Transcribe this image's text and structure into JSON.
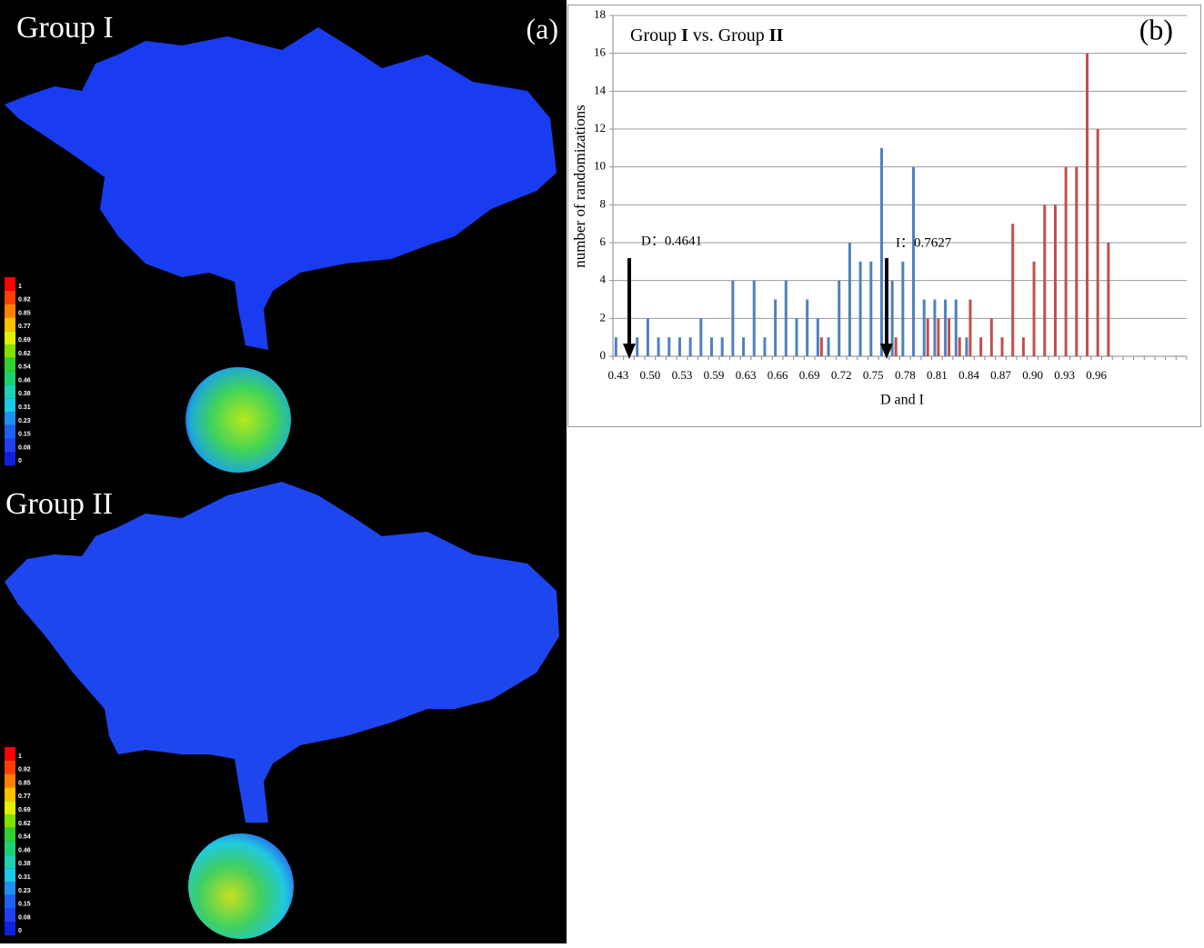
{
  "map_panel": {
    "label": "(a)",
    "maps": [
      {
        "title": "Group I"
      },
      {
        "title": "Group II"
      }
    ],
    "colorbar_ticks": [
      1,
      0.92,
      0.85,
      0.77,
      0.69,
      0.62,
      0.54,
      0.46,
      0.38,
      0.31,
      0.23,
      0.15,
      0.08,
      0
    ]
  },
  "chart_data": {
    "type": "bar",
    "panel_label": "(b)",
    "title_parts": [
      "Group ",
      "I",
      " vs. Group ",
      "II"
    ],
    "x_label": "D and I",
    "y_label": "number of randomizations",
    "categories": [
      "0.43",
      null,
      null,
      "0.50",
      null,
      null,
      "0.53",
      null,
      null,
      "0.59",
      null,
      null,
      "0.63",
      null,
      null,
      "0.66",
      null,
      null,
      "0.69",
      null,
      null,
      "0.72",
      null,
      null,
      "0.75",
      null,
      null,
      "0.78",
      null,
      null,
      "0.81",
      null,
      null,
      "0.84",
      null,
      null,
      "0.87",
      null,
      null,
      "0.90",
      null,
      null,
      "0.93",
      null,
      null,
      "0.96",
      null,
      null,
      null,
      null,
      null,
      null,
      null,
      null
    ],
    "series": [
      {
        "color": "#4f81bd",
        "values": [
          1,
          0,
          1,
          2,
          1,
          1,
          1,
          1,
          2,
          1,
          1,
          4,
          1,
          4,
          1,
          3,
          4,
          2,
          3,
          2,
          1,
          4,
          6,
          5,
          5,
          11,
          4,
          5,
          10,
          3,
          3,
          3,
          3,
          1,
          0,
          0,
          0,
          0,
          0,
          0,
          0,
          0,
          0,
          0,
          0,
          0,
          0,
          0,
          0,
          0,
          0,
          0,
          0,
          0
        ]
      },
      {
        "color": "#c0504d",
        "values": [
          0,
          0,
          0,
          0,
          0,
          0,
          0,
          0,
          0,
          0,
          0,
          0,
          0,
          0,
          0,
          0,
          0,
          0,
          0,
          1,
          0,
          0,
          0,
          0,
          0,
          0,
          1,
          0,
          0,
          2,
          2,
          2,
          1,
          3,
          1,
          2,
          1,
          7,
          1,
          5,
          8,
          8,
          10,
          10,
          16,
          12,
          6,
          0,
          0,
          0,
          0,
          0,
          0,
          0
        ]
      }
    ],
    "annotations": [
      {
        "text": "D：0.4641"
      },
      {
        "text": "I：0.7627"
      }
    ],
    "ylim": [
      0,
      18
    ],
    "yticks": [
      0,
      2,
      4,
      6,
      8,
      10,
      12,
      14,
      16,
      18
    ],
    "grid": true
  }
}
